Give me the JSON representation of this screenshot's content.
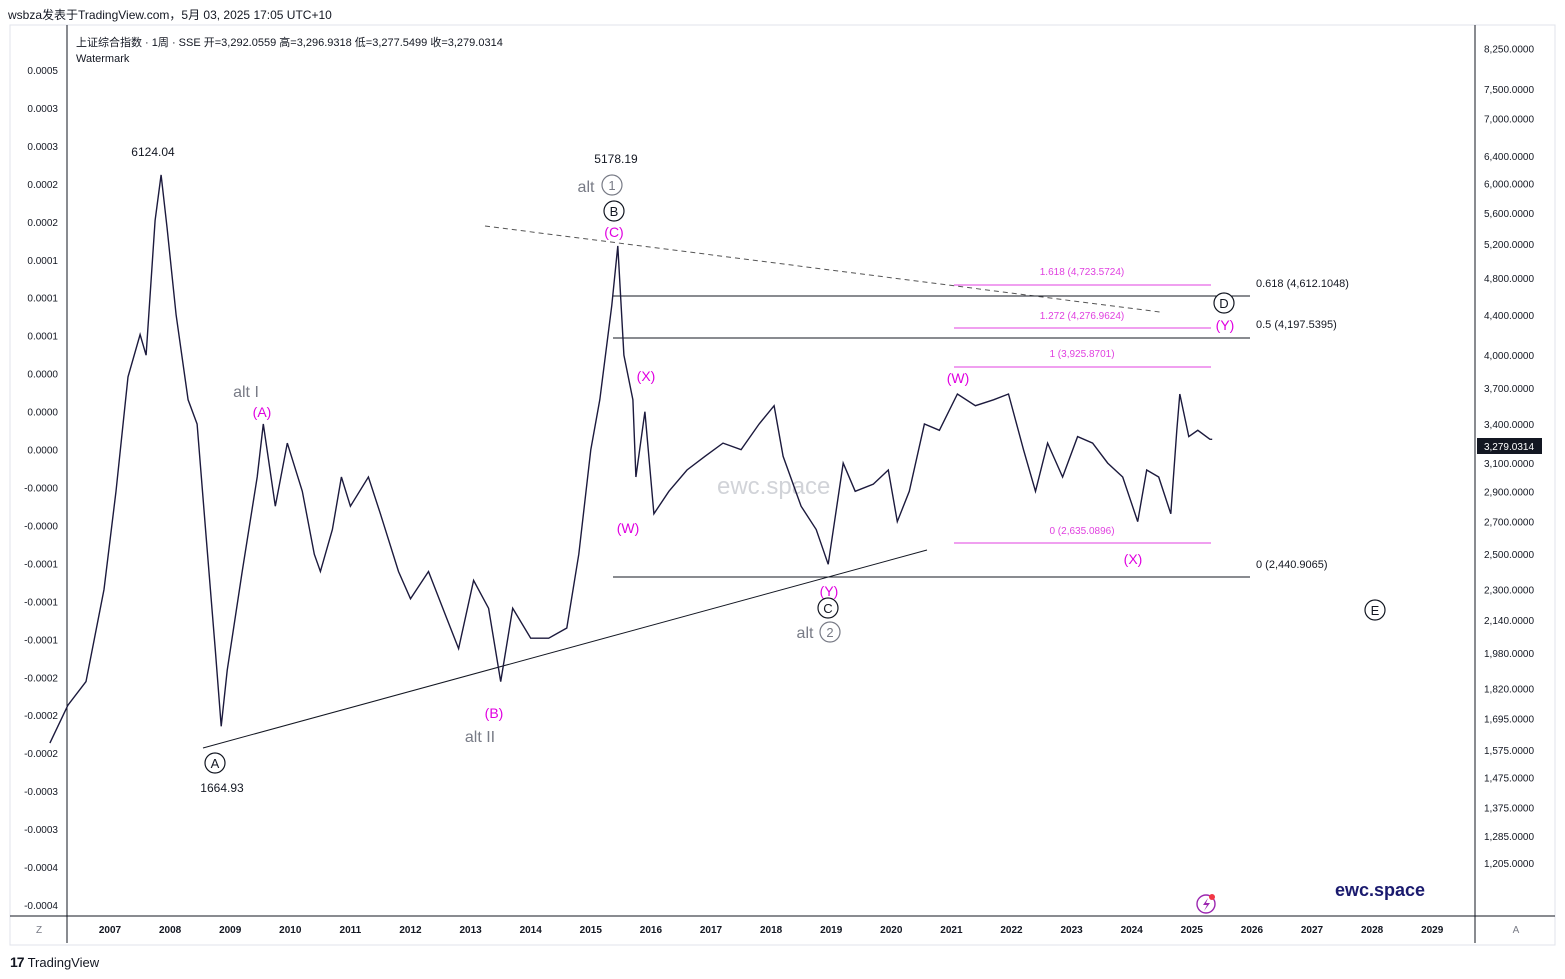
{
  "header": {
    "publisher_line": "wsbza发表于TradingView.com，5月 03, 2025 17:05 UTC+10",
    "symbol_line": "上证综合指数 · 1周 · SSE  开=3,292.0559  高=3,296.9318  低=3,277.5499  收=3,279.0314",
    "indicator_name": "Watermark"
  },
  "footer": {
    "brand": "TradingView",
    "logo_glyph": "17"
  },
  "buttons": {
    "left_scale": "Z",
    "right_scale": "A"
  },
  "colors": {
    "price": "#1c1a3d",
    "fib_magenta": "#e040e0",
    "wave_magenta": "#e000e0",
    "wave_grey": "#787b86",
    "black": "#131722",
    "brand_navy": "#1a1a6e",
    "price_tag_bg": "#131722"
  },
  "watermark": {
    "text": "ewc.space"
  },
  "brand_label": {
    "text": "ewc.space"
  },
  "chart_data": {
    "type": "line",
    "title": "上证综合指数 · 1周 · SSE",
    "x_axis": {
      "tick_labels": [
        "2007",
        "2008",
        "2009",
        "2010",
        "2011",
        "2012",
        "2013",
        "2014",
        "2015",
        "2016",
        "2017",
        "2018",
        "2019",
        "2020",
        "2021",
        "2022",
        "2023",
        "2024",
        "2025",
        "2026",
        "2027",
        "2028",
        "2029"
      ]
    },
    "y_axis_right": {
      "scale": "log",
      "tick_labels": [
        "8,250.0000",
        "7,500.0000",
        "7,000.0000",
        "6,400.0000",
        "6,000.0000",
        "5,600.0000",
        "5,200.0000",
        "4,800.0000",
        "4,400.0000",
        "4,000.0000",
        "3,700.0000",
        "3,400.0000",
        "3,100.0000",
        "2,900.0000",
        "2,700.0000",
        "2,500.0000",
        "2,300.0000",
        "2,140.0000",
        "1,980.0000",
        "1,820.0000",
        "1,695.0000",
        "1,575.0000",
        "1,475.0000",
        "1,375.0000",
        "1,285.0000",
        "1,205.0000"
      ],
      "current_price_label": "3,279.0314"
    },
    "y_axis_left": {
      "tick_labels": [
        "0.0005",
        "0.0003",
        "0.0003",
        "0.0002",
        "0.0002",
        "0.0001",
        "0.0001",
        "0.0001",
        "0.0000",
        "0.0000",
        "0.0000",
        "-0.0000",
        "-0.0000",
        "-0.0001",
        "-0.0001",
        "-0.0001",
        "-0.0002",
        "-0.0002",
        "-0.0002",
        "-0.0003",
        "-0.0003",
        "-0.0004",
        "-0.0004"
      ]
    },
    "series": [
      {
        "points": [
          [
            2006.0,
            1600
          ],
          [
            2006.3,
            1750
          ],
          [
            2006.6,
            1850
          ],
          [
            2006.9,
            2300
          ],
          [
            2007.1,
            2900
          ],
          [
            2007.3,
            3800
          ],
          [
            2007.5,
            4200
          ],
          [
            2007.6,
            4000
          ],
          [
            2007.75,
            5500
          ],
          [
            2007.85,
            6124.04
          ],
          [
            2007.95,
            5400
          ],
          [
            2008.1,
            4400
          ],
          [
            2008.3,
            3600
          ],
          [
            2008.45,
            3400
          ],
          [
            2008.6,
            2600
          ],
          [
            2008.75,
            2000
          ],
          [
            2008.85,
            1664.93
          ],
          [
            2008.95,
            1900
          ],
          [
            2009.2,
            2400
          ],
          [
            2009.45,
            3000
          ],
          [
            2009.55,
            3400
          ],
          [
            2009.75,
            2800
          ],
          [
            2009.95,
            3250
          ],
          [
            2010.2,
            2900
          ],
          [
            2010.4,
            2500
          ],
          [
            2010.5,
            2400
          ],
          [
            2010.7,
            2650
          ],
          [
            2010.85,
            3000
          ],
          [
            2011.0,
            2800
          ],
          [
            2011.3,
            3000
          ],
          [
            2011.5,
            2750
          ],
          [
            2011.8,
            2400
          ],
          [
            2012.0,
            2250
          ],
          [
            2012.3,
            2400
          ],
          [
            2012.6,
            2150
          ],
          [
            2012.8,
            2000
          ],
          [
            2013.05,
            2350
          ],
          [
            2013.3,
            2200
          ],
          [
            2013.5,
            1850
          ],
          [
            2013.7,
            2200
          ],
          [
            2014.0,
            2050
          ],
          [
            2014.3,
            2050
          ],
          [
            2014.6,
            2100
          ],
          [
            2014.8,
            2500
          ],
          [
            2015.0,
            3200
          ],
          [
            2015.15,
            3600
          ],
          [
            2015.35,
            4500
          ],
          [
            2015.45,
            5178.19
          ],
          [
            2015.55,
            4000
          ],
          [
            2015.7,
            3600
          ],
          [
            2015.75,
            3000
          ],
          [
            2015.9,
            3500
          ],
          [
            2016.05,
            2750
          ],
          [
            2016.3,
            2900
          ],
          [
            2016.6,
            3050
          ],
          [
            2016.9,
            3150
          ],
          [
            2017.2,
            3250
          ],
          [
            2017.5,
            3200
          ],
          [
            2017.8,
            3400
          ],
          [
            2018.05,
            3550
          ],
          [
            2018.2,
            3150
          ],
          [
            2018.5,
            2800
          ],
          [
            2018.75,
            2650
          ],
          [
            2018.95,
            2440.9
          ],
          [
            2019.2,
            3100
          ],
          [
            2019.4,
            2900
          ],
          [
            2019.7,
            2950
          ],
          [
            2019.95,
            3050
          ],
          [
            2020.1,
            2700
          ],
          [
            2020.3,
            2900
          ],
          [
            2020.55,
            3400
          ],
          [
            2020.8,
            3350
          ],
          [
            2021.1,
            3650
          ],
          [
            2021.4,
            3550
          ],
          [
            2021.7,
            3600
          ],
          [
            2021.95,
            3650
          ],
          [
            2022.2,
            3200
          ],
          [
            2022.4,
            2900
          ],
          [
            2022.6,
            3250
          ],
          [
            2022.85,
            3000
          ],
          [
            2023.1,
            3300
          ],
          [
            2023.35,
            3250
          ],
          [
            2023.6,
            3100
          ],
          [
            2023.85,
            3000
          ],
          [
            2024.1,
            2700
          ],
          [
            2024.25,
            3050
          ],
          [
            2024.45,
            3000
          ],
          [
            2024.65,
            2750
          ],
          [
            2024.75,
            3350
          ],
          [
            2024.8,
            3650
          ],
          [
            2024.95,
            3300
          ],
          [
            2025.1,
            3350
          ],
          [
            2025.3,
            3280
          ],
          [
            2025.34,
            3279.0314
          ]
        ]
      }
    ],
    "price_labels": [
      "6124.04",
      "5178.19",
      "1664.93"
    ],
    "fib_left": [
      "0.618 (4,612.1048)",
      "0.5 (4,197.5395)",
      "0 (2,440.9065)"
    ],
    "fib_right": [
      "1.618 (4,723.5724)",
      "1.272 (4,276.9624)",
      "1 (3,925.8701)",
      "0 (2,635.0896)"
    ],
    "wave_labels_magenta": [
      "(A)",
      "(B)",
      "(C)",
      "(W)",
      "(X)",
      "(Y)",
      "(W)",
      "(X)",
      "(Y)"
    ],
    "wave_labels_circled": [
      "A",
      "B",
      "C",
      "D",
      "E"
    ],
    "alt_labels": {
      "alt_1": "alt",
      "alt_1_num": "1",
      "alt_2": "alt",
      "alt_2_num": "2",
      "alt_I": "alt I",
      "alt_II": "alt II"
    },
    "grid": false
  }
}
